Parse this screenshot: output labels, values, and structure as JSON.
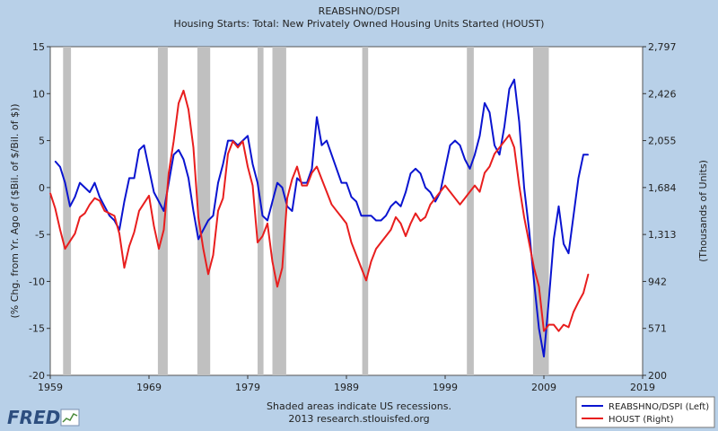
{
  "chart_data": {
    "type": "line",
    "title": "REABSHNO/DSPI",
    "subtitle": "Housing Starts: Total: New Privately Owned Housing Units Started (HOUST)",
    "ylabel_left": "(% Chg. from Yr. Ago of ($Bil. of $/Bil. of $))",
    "ylabel_right": "(Thousands of Units)",
    "xlim": [
      1959,
      2019
    ],
    "ylim_left": [
      -20,
      15
    ],
    "ylim_right": [
      200,
      2797
    ],
    "xticks": [
      "1959",
      "1969",
      "1979",
      "1989",
      "1999",
      "2009",
      "2019"
    ],
    "yticks_left": [
      "15",
      "10",
      "5",
      "0",
      "-5",
      "-10",
      "-15",
      "-20"
    ],
    "yticks_right": [
      "2,797",
      "2,426",
      "2,055",
      "1,684",
      "1,313",
      "942",
      "571",
      "200"
    ],
    "recessions": [
      [
        1960.3,
        1961.1
      ],
      [
        1969.9,
        1970.9
      ],
      [
        1973.9,
        1975.2
      ],
      [
        1980.0,
        1980.6
      ],
      [
        1981.5,
        1982.9
      ],
      [
        1990.6,
        1991.2
      ],
      [
        2001.2,
        2001.9
      ],
      [
        2007.9,
        2009.5
      ]
    ],
    "series": [
      {
        "name": "REABSHNO/DSPI (Left)",
        "axis": "left",
        "color": "#0a14d0",
        "x": [
          1959.5,
          1960.0,
          1960.5,
          1961.0,
          1961.5,
          1962.0,
          1962.5,
          1963.0,
          1963.5,
          1964.0,
          1964.5,
          1965.0,
          1965.5,
          1966.0,
          1966.5,
          1967.0,
          1967.5,
          1968.0,
          1968.5,
          1969.0,
          1969.5,
          1970.0,
          1970.5,
          1971.0,
          1971.5,
          1972.0,
          1972.5,
          1973.0,
          1973.5,
          1974.0,
          1974.5,
          1975.0,
          1975.5,
          1976.0,
          1976.5,
          1977.0,
          1977.5,
          1978.0,
          1978.5,
          1979.0,
          1979.5,
          1980.0,
          1980.5,
          1981.0,
          1981.5,
          1982.0,
          1982.5,
          1983.0,
          1983.5,
          1984.0,
          1984.5,
          1985.0,
          1985.5,
          1986.0,
          1986.5,
          1987.0,
          1987.5,
          1988.0,
          1988.5,
          1989.0,
          1989.5,
          1990.0,
          1990.5,
          1991.0,
          1991.5,
          1992.0,
          1992.5,
          1993.0,
          1993.5,
          1994.0,
          1994.5,
          1995.0,
          1995.5,
          1996.0,
          1996.5,
          1997.0,
          1997.5,
          1998.0,
          1998.5,
          1999.0,
          1999.5,
          2000.0,
          2000.5,
          2001.0,
          2001.5,
          2002.0,
          2002.5,
          2003.0,
          2003.5,
          2004.0,
          2004.5,
          2005.0,
          2005.5,
          2006.0,
          2006.5,
          2007.0,
          2007.5,
          2008.0,
          2008.5,
          2009.0,
          2009.5,
          2010.0,
          2010.5,
          2011.0,
          2011.5,
          2012.0,
          2012.5,
          2013.0,
          2013.5
        ],
        "values": [
          2.8,
          2.2,
          0.5,
          -2.0,
          -1.0,
          0.5,
          0.0,
          -0.5,
          0.5,
          -1.0,
          -2.0,
          -3.0,
          -3.5,
          -4.5,
          -1.5,
          1.0,
          1.0,
          4.0,
          4.5,
          2.0,
          -0.5,
          -1.5,
          -2.5,
          0.5,
          3.5,
          4.0,
          3.0,
          1.0,
          -2.5,
          -5.5,
          -4.5,
          -3.5,
          -3.0,
          0.5,
          2.5,
          5.0,
          5.0,
          4.5,
          5.0,
          5.5,
          2.5,
          0.5,
          -3.0,
          -3.5,
          -1.5,
          0.5,
          0.0,
          -2.0,
          -2.5,
          1.0,
          0.5,
          0.5,
          2.0,
          7.5,
          4.5,
          5.0,
          3.5,
          2.0,
          0.5,
          0.5,
          -1.0,
          -1.5,
          -3.0,
          -3.0,
          -3.0,
          -3.5,
          -3.5,
          -3.0,
          -2.0,
          -1.5,
          -2.0,
          -0.5,
          1.5,
          2.0,
          1.5,
          0.0,
          -0.5,
          -1.5,
          -0.5,
          2.0,
          4.5,
          5.0,
          4.5,
          3.0,
          2.0,
          3.5,
          5.5,
          9.0,
          8.0,
          4.5,
          3.5,
          6.5,
          10.5,
          11.5,
          7.0,
          0.0,
          -4.5,
          -10.0,
          -15.0,
          -18.0,
          -12.0,
          -5.5,
          -2.0,
          -6.0,
          -7.0,
          -3.0,
          1.0,
          3.5,
          3.5
        ]
      },
      {
        "name": "HOUST (Right)",
        "axis": "right",
        "color": "#e81e1e",
        "x": [
          1959.0,
          1959.5,
          1960.0,
          1960.5,
          1961.0,
          1961.5,
          1962.0,
          1962.5,
          1963.0,
          1963.5,
          1964.0,
          1964.5,
          1965.0,
          1965.5,
          1966.0,
          1966.5,
          1967.0,
          1967.5,
          1968.0,
          1968.5,
          1969.0,
          1969.5,
          1970.0,
          1970.5,
          1971.0,
          1971.5,
          1972.0,
          1972.5,
          1973.0,
          1973.5,
          1974.0,
          1974.5,
          1975.0,
          1975.5,
          1976.0,
          1976.5,
          1977.0,
          1977.5,
          1978.0,
          1978.5,
          1979.0,
          1979.5,
          1980.0,
          1980.5,
          1981.0,
          1981.5,
          1982.0,
          1982.5,
          1983.0,
          1983.5,
          1984.0,
          1984.5,
          1985.0,
          1985.5,
          1986.0,
          1986.5,
          1987.0,
          1987.5,
          1988.0,
          1988.5,
          1989.0,
          1989.5,
          1990.0,
          1990.5,
          1991.0,
          1991.5,
          1992.0,
          1992.5,
          1993.0,
          1993.5,
          1994.0,
          1994.5,
          1995.0,
          1995.5,
          1996.0,
          1996.5,
          1997.0,
          1997.5,
          1998.0,
          1998.5,
          1999.0,
          1999.5,
          2000.0,
          2000.5,
          2001.0,
          2001.5,
          2002.0,
          2002.5,
          2003.0,
          2003.5,
          2004.0,
          2004.5,
          2005.0,
          2005.5,
          2006.0,
          2006.5,
          2007.0,
          2007.5,
          2008.0,
          2008.5,
          2009.0,
          2009.5,
          2010.0,
          2010.5,
          2011.0,
          2011.5,
          2012.0,
          2012.5,
          2013.0,
          2013.5
        ],
        "values": [
          1640,
          1520,
          1350,
          1200,
          1260,
          1320,
          1450,
          1480,
          1550,
          1600,
          1580,
          1500,
          1480,
          1460,
          1320,
          1050,
          1220,
          1330,
          1500,
          1560,
          1620,
          1380,
          1200,
          1350,
          1800,
          2050,
          2350,
          2450,
          2300,
          2000,
          1450,
          1200,
          1000,
          1150,
          1500,
          1600,
          1950,
          2050,
          2000,
          2050,
          1850,
          1700,
          1250,
          1300,
          1400,
          1100,
          900,
          1050,
          1600,
          1750,
          1850,
          1700,
          1700,
          1800,
          1850,
          1750,
          1650,
          1550,
          1500,
          1450,
          1400,
          1250,
          1150,
          1050,
          950,
          1100,
          1200,
          1250,
          1300,
          1350,
          1450,
          1400,
          1300,
          1400,
          1480,
          1420,
          1450,
          1550,
          1600,
          1650,
          1700,
          1650,
          1600,
          1550,
          1600,
          1650,
          1700,
          1650,
          1800,
          1850,
          1950,
          2000,
          2050,
          2100,
          2000,
          1700,
          1450,
          1250,
          1050,
          900,
          550,
          600,
          600,
          550,
          600,
          580,
          700,
          780,
          850,
          1000
        ]
      }
    ]
  },
  "footer": {
    "line1": "Shaded areas indicate US recessions.",
    "line2": "2013 research.stlouisfed.org"
  },
  "legend": {
    "item1": "REABSHNO/DSPI (Left)",
    "item2": "HOUST (Right)"
  },
  "logo": "FRED"
}
